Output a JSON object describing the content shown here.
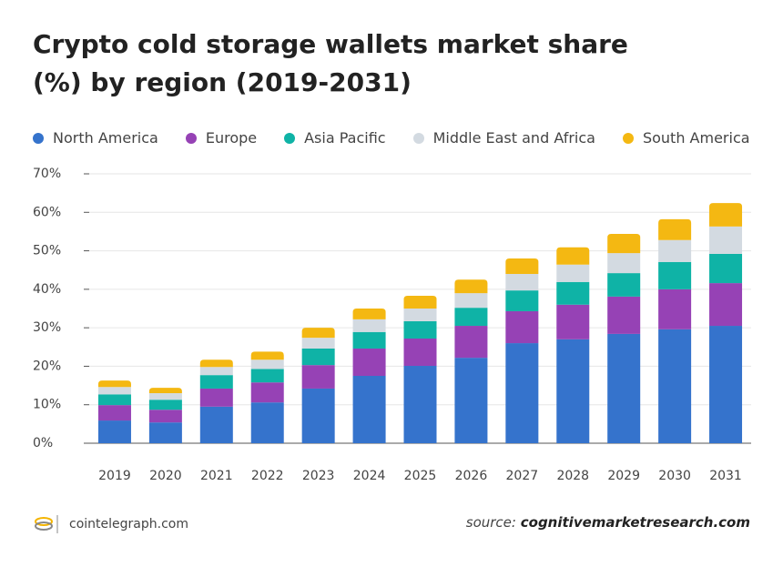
{
  "chart_data": {
    "type": "stacked-bar",
    "title": "Crypto cold storage wallets market share (%) by region (2019-2031)",
    "categories": [
      "2019",
      "2020",
      "2021",
      "2022",
      "2023",
      "2024",
      "2025",
      "2026",
      "2027",
      "2028",
      "2029",
      "2030",
      "2031"
    ],
    "series": [
      {
        "name": "North America",
        "color": "#3573cc",
        "values": [
          5.9,
          5.4,
          9.5,
          10.6,
          14.2,
          17.5,
          20.1,
          22.2,
          26.0,
          27.0,
          28.4,
          29.6,
          30.5
        ]
      },
      {
        "name": "Europe",
        "color": "#9642b5",
        "values": [
          4.0,
          3.3,
          4.7,
          5.2,
          6.1,
          7.1,
          7.1,
          8.3,
          8.3,
          9.0,
          9.7,
          10.4,
          11.1
        ]
      },
      {
        "name": "Asia Pacific",
        "color": "#0fb3a6",
        "values": [
          2.8,
          2.6,
          3.5,
          3.5,
          4.3,
          4.3,
          4.5,
          4.7,
          5.4,
          5.9,
          6.1,
          7.1,
          7.6
        ]
      },
      {
        "name": "Middle East and Africa",
        "color": "#d3dae1",
        "values": [
          1.9,
          1.7,
          2.1,
          2.4,
          2.8,
          3.3,
          3.3,
          3.8,
          4.3,
          4.5,
          5.2,
          5.7,
          7.1
        ]
      },
      {
        "name": "South America",
        "color": "#f4b812",
        "values": [
          1.7,
          1.4,
          1.9,
          2.1,
          2.6,
          2.8,
          3.3,
          3.5,
          4.0,
          4.5,
          5.0,
          5.4,
          6.1
        ]
      }
    ],
    "ylim": [
      0,
      70
    ],
    "yticks": [
      {
        "value": 0,
        "label": "0%"
      },
      {
        "value": 10,
        "label": "10%"
      },
      {
        "value": 20,
        "label": "20%"
      },
      {
        "value": 30,
        "label": "30%"
      },
      {
        "value": 40,
        "label": "40%"
      },
      {
        "value": 50,
        "label": "50%"
      },
      {
        "value": 60,
        "label": "60%"
      },
      {
        "value": 70,
        "label": "70%"
      }
    ],
    "grid": true
  },
  "footer": {
    "brand": "cointelegraph.com",
    "source_prefix": "source:",
    "source": "cognitivemarketresearch.com"
  }
}
